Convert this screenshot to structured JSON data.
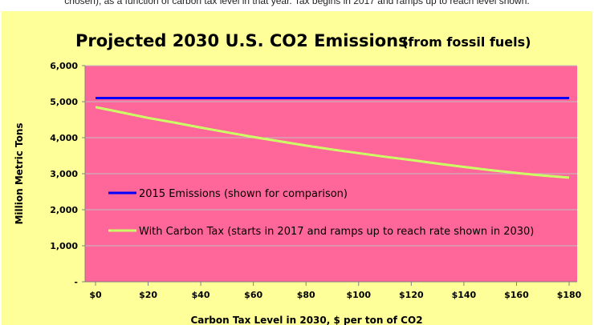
{
  "note": "chosen), as a function of carbon tax level in that year. Tax begins in 2017 and ramps up to reach level shown.",
  "chart_data": {
    "type": "line",
    "title": "Projected 2030 U.S. CO2 Emissions",
    "subtitle": "(from fossil fuels)",
    "xlabel": "Carbon Tax Level in 2030, $ per ton of CO2",
    "ylabel": "Million Metric Tons",
    "x_ticks": [
      "$0",
      "$20",
      "$40",
      "$60",
      "$80",
      "$100",
      "$120",
      "$140",
      "$160",
      "$180"
    ],
    "y_ticks": [
      "-",
      "1,000",
      "2,000",
      "3,000",
      "4,000",
      "5,000",
      "6,000"
    ],
    "xlim": [
      0,
      180
    ],
    "ylim": [
      0,
      6000
    ],
    "grid": true,
    "legend_position": "inside-lower-left",
    "series": [
      {
        "name": "2015 Emissions (shown for comparison)",
        "color": "#0000ff",
        "x": [
          0,
          180
        ],
        "values": [
          5100,
          5100
        ]
      },
      {
        "name": "With Carbon Tax (starts in 2017 and ramps up to reach rate shown in 2030)",
        "color": "#ccff66",
        "x": [
          0,
          10,
          20,
          30,
          40,
          50,
          60,
          70,
          80,
          90,
          100,
          110,
          120,
          130,
          140,
          150,
          160,
          170,
          180
        ],
        "values": [
          4850,
          4700,
          4550,
          4420,
          4280,
          4150,
          4020,
          3900,
          3780,
          3670,
          3570,
          3470,
          3380,
          3280,
          3190,
          3100,
          3020,
          2950,
          2890
        ]
      }
    ],
    "colors": {
      "plot_background": "#ff6699",
      "chart_background": "#ffff99",
      "gridline": "#c0c0c0"
    }
  }
}
